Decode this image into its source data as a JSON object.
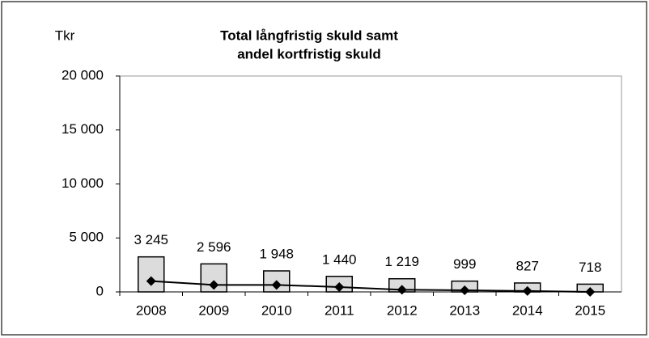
{
  "chart_data": {
    "type": "bar",
    "title": [
      "Total långfristig skuld samt",
      "andel kortfristig skuld"
    ],
    "y_label": "Tkr",
    "categories": [
      "2008",
      "2009",
      "2010",
      "2011",
      "2012",
      "2013",
      "2014",
      "2015"
    ],
    "series": [
      {
        "type": "bar",
        "color": "#dcdcdc",
        "values": [
          3245,
          2596,
          1948,
          1440,
          1219,
          999,
          827,
          718
        ],
        "value_labels": [
          "3 245",
          "2 596",
          "1 948",
          "1 440",
          "1 219",
          "999",
          "827",
          "718"
        ]
      },
      {
        "type": "line",
        "color": "#000000",
        "values": [
          1000,
          650,
          650,
          450,
          200,
          150,
          80,
          0
        ]
      }
    ],
    "ylim": [
      0,
      20000
    ],
    "yticks": [
      0,
      {
        "value": 5000,
        "label": "5 000"
      },
      {
        "value": 10000,
        "label": "10 000"
      },
      {
        "value": 15000,
        "label": "15 000"
      },
      {
        "value": 20000,
        "label": "20 000"
      }
    ]
  }
}
